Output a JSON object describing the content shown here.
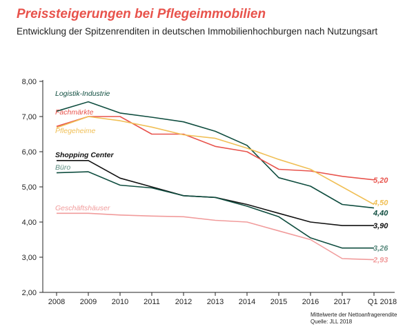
{
  "title": "Preissteigerungen bei Pflegeimmobilien",
  "subtitle": "Entwicklung der Spitzenrenditen in deutschen Immobilienhochburgen nach Nutzungsart",
  "footnote": {
    "line1": "Mittelwerte der Nettoanfragerendite",
    "line2": "Quelle: JLL 2018"
  },
  "chart_data": {
    "type": "line",
    "categories": [
      "2008",
      "2009",
      "2010",
      "2011",
      "2012",
      "2013",
      "2014",
      "2015",
      "2016",
      "2017",
      "Q1 2018"
    ],
    "y_ticks": [
      "2,00",
      "3,00",
      "4,00",
      "5,00",
      "6,00",
      "7,00",
      "8,00"
    ],
    "ylim": [
      2,
      8
    ],
    "grid": false,
    "series": [
      {
        "name": "Logistik-Industrie",
        "color": "#0f4d3f",
        "values": [
          7.15,
          7.42,
          7.1,
          6.98,
          6.85,
          6.58,
          6.18,
          5.26,
          5.02,
          4.5,
          4.4
        ],
        "end_label": "4,40"
      },
      {
        "name": "Fachmärkte",
        "color": "#e8534c",
        "values": [
          6.72,
          7.0,
          7.0,
          6.5,
          6.5,
          6.15,
          6.0,
          5.5,
          5.45,
          5.3,
          5.2
        ],
        "end_label": "5,20"
      },
      {
        "name": "Pflegeheime",
        "color": "#f0bf55",
        "values": [
          6.68,
          7.0,
          6.88,
          6.7,
          6.48,
          6.38,
          6.1,
          5.78,
          5.5,
          5.0,
          4.5
        ],
        "end_label": "4,50"
      },
      {
        "name": "Shopping Center",
        "color": "#111111",
        "values": [
          5.75,
          5.75,
          5.25,
          5.0,
          4.75,
          4.7,
          4.5,
          4.25,
          4.0,
          3.9,
          3.9
        ],
        "end_label": "3,90"
      },
      {
        "name": "Büro",
        "color": "#0f4d3f",
        "label_color": "#5a8b7f",
        "values": [
          5.4,
          5.43,
          5.05,
          4.97,
          4.75,
          4.7,
          4.45,
          4.15,
          3.55,
          3.26,
          3.26
        ],
        "end_label": "3,26"
      },
      {
        "name": "Geschäftshäuser",
        "color": "#f19b9b",
        "values": [
          4.25,
          4.25,
          4.2,
          4.17,
          4.15,
          4.05,
          4.0,
          3.75,
          3.5,
          2.96,
          2.93
        ],
        "end_label": "2,93"
      }
    ]
  }
}
